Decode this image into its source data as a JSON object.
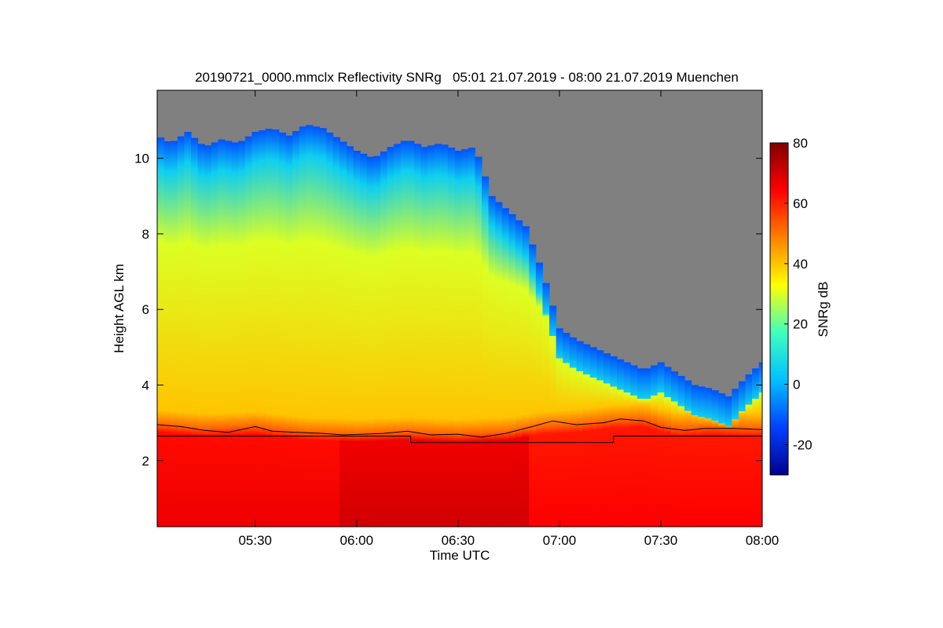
{
  "chart_data": {
    "type": "heatmap",
    "title": "20190721_0000.mmclx Reflectivity SNRg   05:01 21.07.2019 - 08:00 21.07.2019 Muenchen",
    "xlabel": "Time UTC",
    "ylabel": "Height AGL km",
    "x_range": [
      "05:01",
      "08:00"
    ],
    "y_range": [
      0.25,
      11.8
    ],
    "x_ticks": [
      {
        "label": "05:30",
        "minute": 30
      },
      {
        "label": "06:00",
        "minute": 60
      },
      {
        "label": "06:30",
        "minute": 90
      },
      {
        "label": "07:00",
        "minute": 120
      },
      {
        "label": "07:30",
        "minute": 150
      },
      {
        "label": "08:00",
        "minute": 180
      }
    ],
    "y_ticks": [
      2,
      4,
      6,
      8,
      10
    ],
    "colorbar": {
      "label": "SNRg dB",
      "range": [
        -30,
        80
      ],
      "ticks": [
        -20,
        0,
        20,
        40,
        60,
        80
      ],
      "colormap": [
        "#00008f",
        "#0040ff",
        "#00c0ff",
        "#40ffbf",
        "#ffff00",
        "#ff8000",
        "#ff0000",
        "#800000"
      ]
    },
    "no_signal_color": "#808080",
    "grid": false,
    "signal_top_km": [
      {
        "t": 1,
        "h": 10.6
      },
      {
        "t": 5,
        "h": 10.4
      },
      {
        "t": 10,
        "h": 10.7
      },
      {
        "t": 15,
        "h": 10.3
      },
      {
        "t": 20,
        "h": 10.5
      },
      {
        "t": 25,
        "h": 10.4
      },
      {
        "t": 30,
        "h": 10.7
      },
      {
        "t": 35,
        "h": 10.8
      },
      {
        "t": 40,
        "h": 10.6
      },
      {
        "t": 45,
        "h": 10.9
      },
      {
        "t": 50,
        "h": 10.8
      },
      {
        "t": 55,
        "h": 10.5
      },
      {
        "t": 60,
        "h": 10.2
      },
      {
        "t": 65,
        "h": 10.0
      },
      {
        "t": 70,
        "h": 10.3
      },
      {
        "t": 75,
        "h": 10.5
      },
      {
        "t": 80,
        "h": 10.3
      },
      {
        "t": 85,
        "h": 10.4
      },
      {
        "t": 90,
        "h": 10.2
      },
      {
        "t": 95,
        "h": 10.3
      },
      {
        "t": 100,
        "h": 9.0
      },
      {
        "t": 105,
        "h": 8.6
      },
      {
        "t": 110,
        "h": 8.2
      },
      {
        "t": 115,
        "h": 7.0
      },
      {
        "t": 120,
        "h": 5.5
      },
      {
        "t": 125,
        "h": 5.2
      },
      {
        "t": 130,
        "h": 5.0
      },
      {
        "t": 135,
        "h": 4.8
      },
      {
        "t": 140,
        "h": 4.6
      },
      {
        "t": 145,
        "h": 4.4
      },
      {
        "t": 150,
        "h": 4.6
      },
      {
        "t": 155,
        "h": 4.3
      },
      {
        "t": 160,
        "h": 4.0
      },
      {
        "t": 165,
        "h": 3.9
      },
      {
        "t": 170,
        "h": 3.7
      },
      {
        "t": 175,
        "h": 4.2
      },
      {
        "t": 180,
        "h": 4.6
      }
    ],
    "bright_band_km": [
      {
        "t": 1,
        "h": 2.95
      },
      {
        "t": 15,
        "h": 2.85
      },
      {
        "t": 30,
        "h": 2.9
      },
      {
        "t": 45,
        "h": 2.75
      },
      {
        "t": 60,
        "h": 2.7
      },
      {
        "t": 75,
        "h": 2.75
      },
      {
        "t": 90,
        "h": 2.7
      },
      {
        "t": 105,
        "h": 2.75
      },
      {
        "t": 115,
        "h": 2.9
      },
      {
        "t": 125,
        "h": 2.95
      },
      {
        "t": 135,
        "h": 3.05
      },
      {
        "t": 145,
        "h": 3.1
      },
      {
        "t": 155,
        "h": 2.85
      },
      {
        "t": 165,
        "h": 2.9
      },
      {
        "t": 175,
        "h": 2.85
      },
      {
        "t": 180,
        "h": 2.85
      }
    ],
    "lines": [
      {
        "points": [
          {
            "t": 1,
            "h": 2.95
          },
          {
            "t": 8,
            "h": 2.9
          },
          {
            "t": 15,
            "h": 2.8
          },
          {
            "t": 22,
            "h": 2.75
          },
          {
            "t": 30,
            "h": 2.9
          },
          {
            "t": 35,
            "h": 2.78
          },
          {
            "t": 42,
            "h": 2.75
          },
          {
            "t": 50,
            "h": 2.72
          },
          {
            "t": 56,
            "h": 2.68
          },
          {
            "t": 62,
            "h": 2.7
          },
          {
            "t": 68,
            "h": 2.72
          },
          {
            "t": 75,
            "h": 2.78
          },
          {
            "t": 82,
            "h": 2.68
          },
          {
            "t": 90,
            "h": 2.7
          },
          {
            "t": 97,
            "h": 2.62
          },
          {
            "t": 104,
            "h": 2.72
          },
          {
            "t": 112,
            "h": 2.9
          },
          {
            "t": 118,
            "h": 3.05
          },
          {
            "t": 125,
            "h": 2.95
          },
          {
            "t": 133,
            "h": 3.0
          },
          {
            "t": 138,
            "h": 3.1
          },
          {
            "t": 145,
            "h": 3.05
          },
          {
            "t": 150,
            "h": 2.88
          },
          {
            "t": 157,
            "h": 2.8
          },
          {
            "t": 163,
            "h": 2.85
          },
          {
            "t": 168,
            "h": 2.85
          },
          {
            "t": 172,
            "h": 2.85
          },
          {
            "t": 180,
            "h": 2.82
          }
        ]
      },
      {
        "points": [
          {
            "t": 1,
            "h": 2.65
          },
          {
            "t": 76,
            "h": 2.65
          },
          {
            "t": 76,
            "h": 2.48
          },
          {
            "t": 136,
            "h": 2.48
          },
          {
            "t": 136,
            "h": 2.65
          },
          {
            "t": 180,
            "h": 2.65
          }
        ]
      }
    ]
  }
}
